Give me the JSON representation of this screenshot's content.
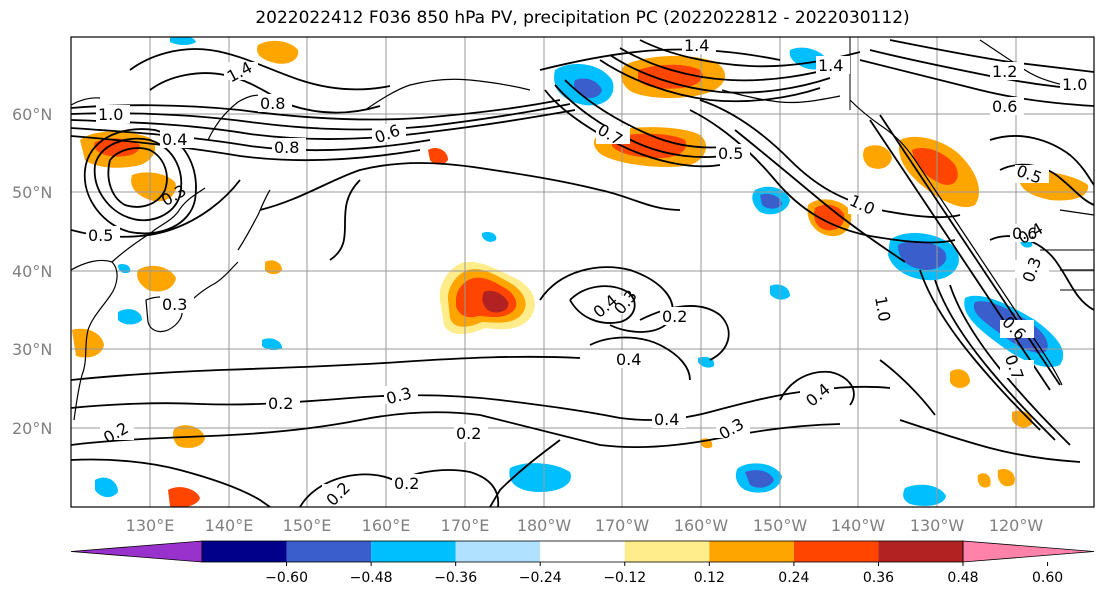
{
  "title": "2022022412 F036 850 hPa PV, precipitation PC (2022022812 - 2022030112)",
  "lat_labels": [
    "60°N",
    "50°N",
    "40°N",
    "30°N",
    "20°N"
  ],
  "lon_labels": [
    "130°E",
    "140°E",
    "150°E",
    "160°E",
    "170°E",
    "180°W",
    "170°W",
    "160°W",
    "150°W",
    "140°W",
    "130°W",
    "120°W"
  ],
  "colorbar": {
    "colors": [
      "#9932CC",
      "#00008B",
      "#3A5FCD",
      "#00BFFF",
      "#B0E2FF",
      "#FFFFFF",
      "#FFEC8B",
      "#FFA500",
      "#FF4500",
      "#B22222",
      "#FF82AB"
    ],
    "ticks": [
      "−0.60",
      "−0.48",
      "−0.36",
      "−0.24",
      "−0.12",
      "0.12",
      "0.24",
      "0.36",
      "0.48",
      "0.60"
    ]
  },
  "contour_labels": [
    "1.4",
    "1.4",
    "1.0",
    "0.8",
    "0.8",
    "1.0",
    "0.6",
    "0.5",
    "0.4",
    "0.3",
    "0.2",
    "0.2",
    "0.3",
    "0.4",
    "0.2",
    "0.3",
    "0.4",
    "0.4",
    "0.2",
    "0.3",
    "0.2",
    "0.2",
    "0.7",
    "0.5",
    "0.6",
    "1.0",
    "1.0",
    "0.6",
    "0.4",
    "0.3",
    "0.6",
    "0.7",
    "0.4",
    "1.4",
    "1.2",
    "0.5",
    "0.3"
  ],
  "colors": {
    "frame": "#000000",
    "grid": "#808080",
    "axis_label": "#808080"
  }
}
